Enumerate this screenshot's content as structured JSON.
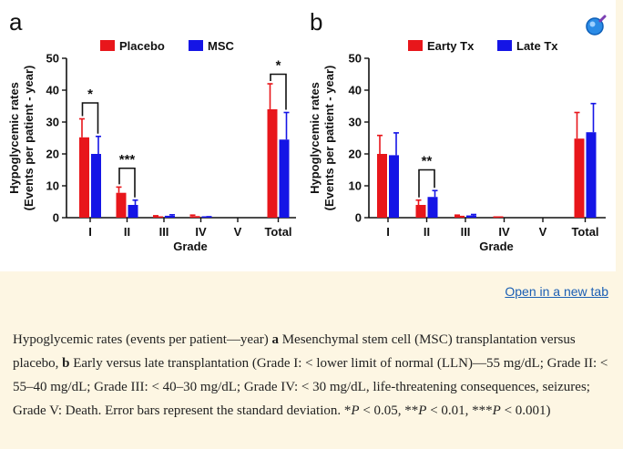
{
  "chart_data": [
    {
      "panel": "a",
      "type": "bar",
      "title": "",
      "xlabel": "Grade",
      "ylabel_line1": "Hypoglycemic rates",
      "ylabel_line2": "(Events per patient - year)",
      "ylim": [
        0,
        50
      ],
      "yticks": [
        0,
        10,
        20,
        30,
        40,
        50
      ],
      "categories": [
        "I",
        "II",
        "III",
        "IV",
        "V",
        "Total"
      ],
      "series": [
        {
          "name": "Placebo",
          "color": "#e8161b",
          "values": [
            25.2,
            7.8,
            0.4,
            0.5,
            0,
            34.0
          ],
          "errors": [
            5.8,
            1.8,
            0.2,
            0.3,
            0,
            8.0
          ]
        },
        {
          "name": "MSC",
          "color": "#1515e6",
          "values": [
            20.0,
            4.0,
            0.6,
            0.2,
            0,
            24.5
          ],
          "errors": [
            5.5,
            1.5,
            0.3,
            0.1,
            0,
            8.5
          ]
        }
      ],
      "significance": [
        {
          "category": "I",
          "label": "*",
          "level": 36
        },
        {
          "category": "II",
          "label": "***",
          "level": 15.5
        },
        {
          "category": "Total",
          "label": "*",
          "level": 45
        }
      ]
    },
    {
      "panel": "b",
      "type": "bar",
      "title": "",
      "xlabel": "Grade",
      "ylabel_line1": "Hypoglycemic rates",
      "ylabel_line2": "(Events per patient - year)",
      "ylim": [
        0,
        50
      ],
      "yticks": [
        0,
        10,
        20,
        30,
        40,
        50
      ],
      "categories": [
        "I",
        "II",
        "III",
        "IV",
        "V",
        "Total"
      ],
      "series": [
        {
          "name": "Earty Tx",
          "color": "#e8161b",
          "values": [
            20.0,
            4.0,
            0.6,
            0.1,
            0,
            24.8
          ],
          "errors": [
            5.8,
            1.5,
            0.2,
            0.1,
            0,
            8.2
          ]
        },
        {
          "name": "Late Tx",
          "color": "#1515e6",
          "values": [
            19.6,
            6.5,
            0.7,
            0,
            0,
            26.8
          ],
          "errors": [
            7.0,
            2.0,
            0.3,
            0,
            0,
            9.0
          ]
        }
      ],
      "significance": [
        {
          "category": "II",
          "label": "**",
          "level": 15
        }
      ]
    }
  ],
  "link": {
    "open_new_tab": "Open in a new tab"
  },
  "caption": {
    "t1": "Hypoglycemic rates (events per patient—year) ",
    "b1": "a",
    "t2": " Mesenchymal stem cell (MSC) transplantation versus placebo, ",
    "b2": "b",
    "t3": " Early versus late transplantation (Grade I: < lower limit of normal (LLN)—55 mg/dL; Grade II: < 55–40 mg/dL; Grade III: < 40–30 mg/dL; Grade IV: < 30 mg/dL, life-threatening consequences, seizures; Grade V: Death. Error bars represent the standard deviation. ",
    "s1": "*",
    "p1": "P",
    "t4": " < 0.05, ",
    "s2": "**",
    "p2": "P",
    "t5": " < 0.01, ",
    "s3": "***",
    "p3": "P",
    "t6": " < 0.001)"
  },
  "icons": {
    "zoom": "magnifier-icon"
  }
}
